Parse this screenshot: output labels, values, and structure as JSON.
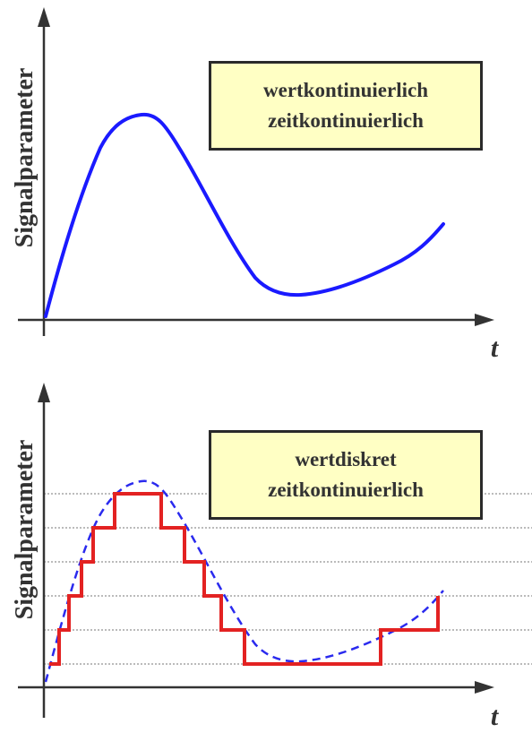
{
  "top": {
    "ylabel": "Signalparameter",
    "tlabel": "t",
    "box_line1": "wertkontinuierlich",
    "box_line2": "zeitkontinuierlich",
    "curve_color": "#1a1aff"
  },
  "bottom": {
    "ylabel": "Signalparameter",
    "tlabel": "t",
    "box_line1": "wertdiskret",
    "box_line2": "zeitkontinuierlich",
    "step_color": "#e32222",
    "dashed_color": "#2a2aee",
    "grid_color": "#777777",
    "quantization_levels": 6
  },
  "colors": {
    "axis": "#333333",
    "box_fill": "#ffffc4",
    "box_border": "#2a2a2a"
  }
}
